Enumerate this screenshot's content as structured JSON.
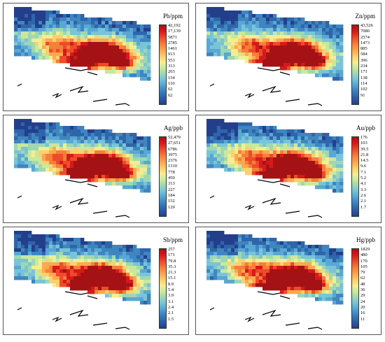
{
  "panels": [
    {
      "id": "pb",
      "unit": "Pb/ppm",
      "ticks": [
        "42,192",
        "17,139",
        "5871",
        "2785",
        "1461",
        "913",
        "553",
        "313",
        "203",
        "154",
        "110",
        "62",
        "62"
      ]
    },
    {
      "id": "zn",
      "unit": "Zn/ppm",
      "ticks": [
        "43,526",
        "7080",
        "2574",
        "1473",
        "885",
        "584",
        "396",
        "234",
        "171",
        "138",
        "114",
        "102",
        "91"
      ]
    },
    {
      "id": "ag",
      "unit": "Ag/ppb",
      "ticks": [
        "52,479",
        "27,651",
        "6786",
        "3975",
        "2376",
        "1310",
        "778",
        "450",
        "313",
        "227",
        "184",
        "152",
        "129"
      ]
    },
    {
      "id": "au",
      "unit": "Au/ppb",
      "ticks": [
        "176",
        "103",
        "39.5",
        "21.8",
        "14.5",
        "9.6",
        "7.1",
        "5.2",
        "4.1",
        "3.3",
        "2.6",
        "2.1",
        "1.7"
      ]
    },
    {
      "id": "sb",
      "unit": "Sb/ppm",
      "ticks": [
        "257",
        "171",
        "79.8",
        "35.3",
        "21.3",
        "15.1",
        "8.9",
        "5.4",
        "3.9",
        "3.1",
        "2.4",
        "2.1",
        "1.5"
      ]
    },
    {
      "id": "hg",
      "unit": "Hg/ppb",
      "ticks": [
        "1829",
        "480",
        "170",
        "105",
        "79",
        "62",
        "48",
        "36",
        "29",
        "24",
        "20",
        "16",
        "11"
      ]
    }
  ],
  "colors": {
    "low": "#233f8c",
    "mid": "#f2ee92",
    "high": "#a51215",
    "border": "#555555"
  }
}
